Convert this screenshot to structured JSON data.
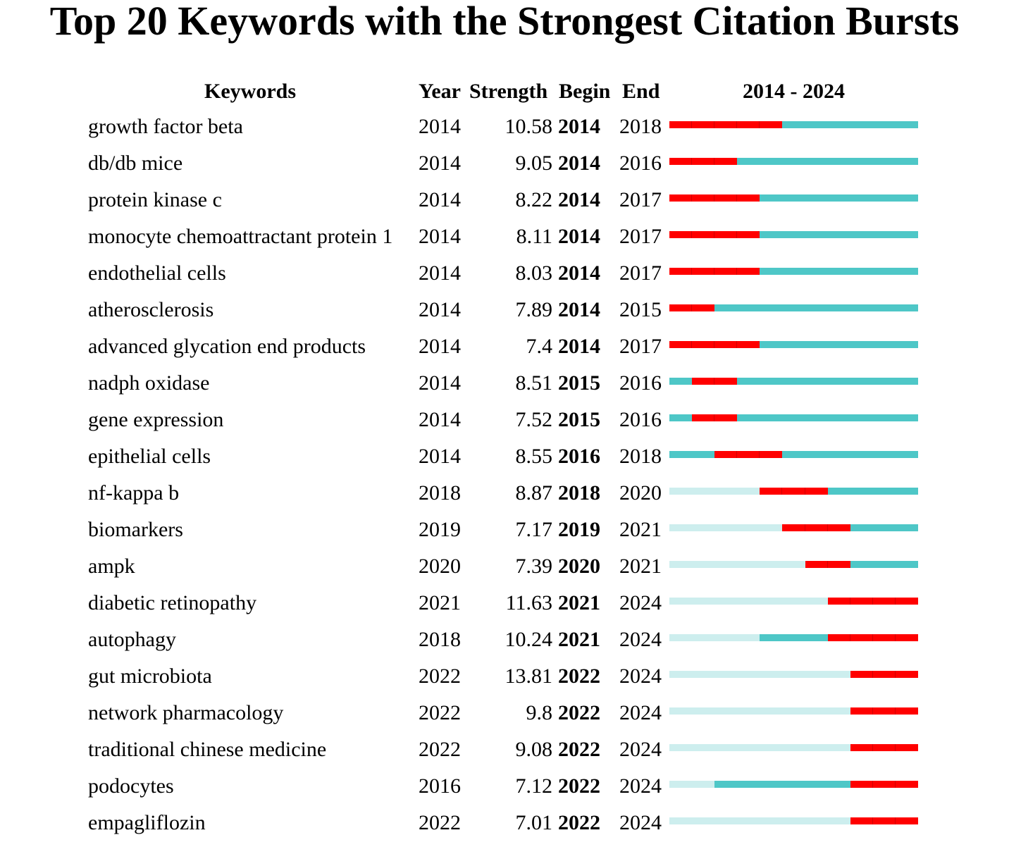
{
  "chart_data": {
    "type": "table",
    "title": "Top 20 Keywords with the Strongest Citation Bursts",
    "headers": {
      "keywords": "Keywords",
      "year": "Year",
      "strength": "Strength",
      "begin": "Begin",
      "end": "End",
      "range": "2014 - 2024"
    },
    "range_start": 2014,
    "range_end": 2024,
    "colors": {
      "burst": "#ff0000",
      "active": "#4ec7c7",
      "inactive": "#cdeeee"
    },
    "rows": [
      {
        "keyword": "growth factor beta",
        "year": "2014",
        "strength": "10.58",
        "begin": "2014",
        "end": "2018"
      },
      {
        "keyword": "db/db mice",
        "year": "2014",
        "strength": "9.05",
        "begin": "2014",
        "end": "2016"
      },
      {
        "keyword": "protein kinase c",
        "year": "2014",
        "strength": "8.22",
        "begin": "2014",
        "end": "2017"
      },
      {
        "keyword": "monocyte chemoattractant protein 1",
        "year": "2014",
        "strength": "8.11",
        "begin": "2014",
        "end": "2017"
      },
      {
        "keyword": "endothelial cells",
        "year": "2014",
        "strength": "8.03",
        "begin": "2014",
        "end": "2017"
      },
      {
        "keyword": "atherosclerosis",
        "year": "2014",
        "strength": "7.89",
        "begin": "2014",
        "end": "2015"
      },
      {
        "keyword": "advanced glycation end products",
        "year": "2014",
        "strength": "7.4",
        "begin": "2014",
        "end": "2017"
      },
      {
        "keyword": "nadph oxidase",
        "year": "2014",
        "strength": "8.51",
        "begin": "2015",
        "end": "2016"
      },
      {
        "keyword": "gene expression",
        "year": "2014",
        "strength": "7.52",
        "begin": "2015",
        "end": "2016"
      },
      {
        "keyword": "epithelial cells",
        "year": "2014",
        "strength": "8.55",
        "begin": "2016",
        "end": "2018"
      },
      {
        "keyword": "nf-kappa b",
        "year": "2018",
        "strength": "8.87",
        "begin": "2018",
        "end": "2020"
      },
      {
        "keyword": "biomarkers",
        "year": "2019",
        "strength": "7.17",
        "begin": "2019",
        "end": "2021"
      },
      {
        "keyword": "ampk",
        "year": "2020",
        "strength": "7.39",
        "begin": "2020",
        "end": "2021"
      },
      {
        "keyword": "diabetic retinopathy",
        "year": "2021",
        "strength": "11.63",
        "begin": "2021",
        "end": "2024"
      },
      {
        "keyword": "autophagy",
        "year": "2018",
        "strength": "10.24",
        "begin": "2021",
        "end": "2024"
      },
      {
        "keyword": "gut microbiota",
        "year": "2022",
        "strength": "13.81",
        "begin": "2022",
        "end": "2024"
      },
      {
        "keyword": "network pharmacology",
        "year": "2022",
        "strength": "9.8",
        "begin": "2022",
        "end": "2024"
      },
      {
        "keyword": "traditional chinese medicine",
        "year": "2022",
        "strength": "9.08",
        "begin": "2022",
        "end": "2024"
      },
      {
        "keyword": "podocytes",
        "year": "2016",
        "strength": "7.12",
        "begin": "2022",
        "end": "2024"
      },
      {
        "keyword": "empagliflozin",
        "year": "2022",
        "strength": "7.01",
        "begin": "2022",
        "end": "2024"
      }
    ]
  }
}
